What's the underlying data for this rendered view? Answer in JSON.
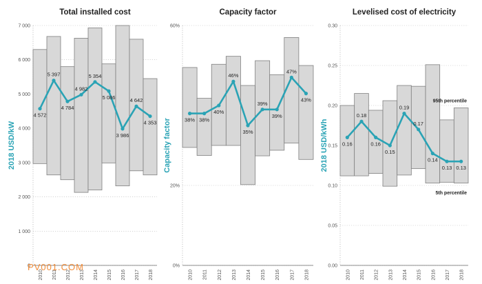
{
  "colors": {
    "line": "#2aa3b5",
    "band": "#d8d8d8",
    "bandStroke": "#7f7f7f",
    "grid": "#bbbbbb"
  },
  "watermark": "PV001.COM",
  "chart_data": [
    {
      "type": "line",
      "title": "Total installed cost",
      "ylabel": "2018 USD/kW",
      "ylim": [
        0,
        7000
      ],
      "yticks": [
        0,
        1000,
        2000,
        3000,
        4000,
        5000,
        6000,
        7000
      ],
      "ytick_labels": [
        "0",
        "1 000",
        "2 000",
        "3 000",
        "4 000",
        "5 000",
        "6 000",
        "7 000"
      ],
      "categories": [
        "2010",
        "2011",
        "2012",
        "2013",
        "2014",
        "2015",
        "2016",
        "2017",
        "2018"
      ],
      "values": [
        4572,
        5397,
        4784,
        4982,
        5354,
        5086,
        3986,
        4642,
        4353
      ],
      "value_labels": [
        "4 572",
        "5 397",
        "4 784",
        "4 982",
        "5 354",
        "5 086",
        "3 986",
        "4 642",
        "4 353"
      ],
      "band_high": [
        6300,
        6680,
        5800,
        6630,
        6930,
        5880,
        7000,
        6600,
        5450
      ],
      "band_low": [
        2970,
        2640,
        2500,
        2130,
        2200,
        2990,
        2320,
        2760,
        2640
      ],
      "annotations": []
    },
    {
      "type": "line",
      "title": "Capacity factor",
      "ylabel": "Capacity factor",
      "ylim": [
        0,
        60
      ],
      "yticks": [
        0,
        20,
        40,
        60
      ],
      "ytick_labels": [
        "0%",
        "20%",
        "",
        "60%"
      ],
      "categories": [
        "2010",
        "2011",
        "2012",
        "2013",
        "2014",
        "2015",
        "2016",
        "2017",
        "2018"
      ],
      "values": [
        38,
        38,
        40,
        46,
        35,
        39,
        39,
        47,
        43
      ],
      "value_labels": [
        "38%",
        "38%",
        "40%",
        "46%",
        "35%",
        "39%",
        "39%",
        "47%",
        "43%"
      ],
      "band_high": [
        49.5,
        41.8,
        50.3,
        52.3,
        45,
        51.2,
        47.7,
        57,
        50
      ],
      "band_low": [
        29.5,
        27.5,
        30,
        30,
        20.2,
        27.4,
        28.8,
        30.6,
        26.5
      ],
      "annotations": []
    },
    {
      "type": "line",
      "title": "Levelised cost of electricity",
      "ylabel": "2018 USD/kWh",
      "ylim": [
        0,
        0.3
      ],
      "yticks": [
        0,
        0.05,
        0.1,
        0.15,
        0.2,
        0.25,
        0.3
      ],
      "ytick_labels": [
        "0.00",
        "0.05",
        "0.10",
        "0.15",
        "0.20",
        "0.25",
        "0.30"
      ],
      "categories": [
        "2010",
        "2011",
        "2012",
        "2013",
        "2014",
        "2015",
        "2016",
        "2017",
        "2018"
      ],
      "values": [
        0.16,
        0.18,
        0.16,
        0.15,
        0.19,
        0.17,
        0.14,
        0.13,
        0.13
      ],
      "value_labels": [
        "0.16",
        "0.18",
        "0.16",
        "0.15",
        "0.19",
        "0.17",
        "0.14",
        "0.13",
        "0.13"
      ],
      "band_high": [
        0.2,
        0.215,
        0.194,
        0.206,
        0.225,
        0.224,
        0.251,
        0.182,
        0.197
      ],
      "band_low": [
        0.112,
        0.112,
        0.115,
        0.099,
        0.113,
        0.121,
        0.103,
        0.104,
        0.103
      ],
      "annotations": [
        {
          "text": "95th percentile",
          "x_index": 8,
          "y": 0.206
        },
        {
          "text": "5th percentile",
          "x_index": 8,
          "y": 0.091
        }
      ]
    }
  ]
}
